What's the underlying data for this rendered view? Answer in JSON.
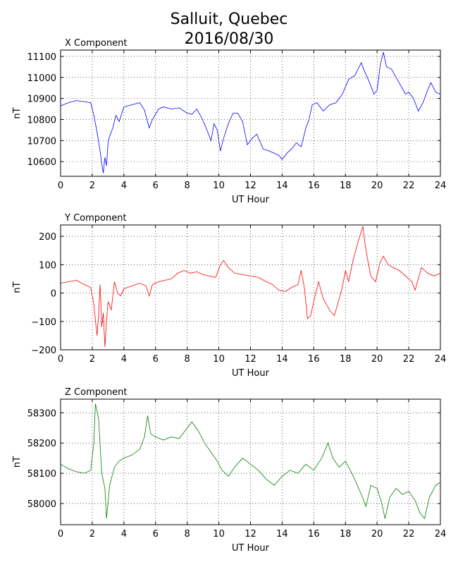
{
  "title_line1": "Salluit, Quebec",
  "title_line2": "2016/08/30",
  "chart_data": [
    {
      "type": "line",
      "panel_title": "X Component",
      "xlabel": "UT Hour",
      "ylabel": "nT",
      "xlim": [
        0,
        24
      ],
      "ylim": [
        10530,
        11130
      ],
      "xticks": [
        0,
        2,
        4,
        6,
        8,
        10,
        12,
        14,
        16,
        18,
        20,
        22,
        24
      ],
      "yticks": [
        10600,
        10700,
        10800,
        10900,
        11000,
        11100
      ],
      "grid": true,
      "color": "#0000ff",
      "points": [
        [
          0,
          10865
        ],
        [
          0.5,
          10880
        ],
        [
          1,
          10890
        ],
        [
          1.5,
          10885
        ],
        [
          1.9,
          10880
        ],
        [
          2.1,
          10820
        ],
        [
          2.3,
          10740
        ],
        [
          2.5,
          10650
        ],
        [
          2.6,
          10590
        ],
        [
          2.7,
          10545
        ],
        [
          2.8,
          10620
        ],
        [
          2.9,
          10580
        ],
        [
          3,
          10690
        ],
        [
          3.1,
          10720
        ],
        [
          3.3,
          10760
        ],
        [
          3.5,
          10820
        ],
        [
          3.7,
          10790
        ],
        [
          4,
          10860
        ],
        [
          4.5,
          10870
        ],
        [
          5,
          10880
        ],
        [
          5.3,
          10845
        ],
        [
          5.6,
          10760
        ],
        [
          5.8,
          10800
        ],
        [
          6.2,
          10850
        ],
        [
          6.5,
          10860
        ],
        [
          7,
          10850
        ],
        [
          7.5,
          10855
        ],
        [
          8,
          10830
        ],
        [
          8.3,
          10825
        ],
        [
          8.6,
          10850
        ],
        [
          8.9,
          10810
        ],
        [
          9.2,
          10760
        ],
        [
          9.5,
          10700
        ],
        [
          9.7,
          10780
        ],
        [
          9.9,
          10750
        ],
        [
          10.1,
          10650
        ],
        [
          10.3,
          10710
        ],
        [
          10.6,
          10780
        ],
        [
          10.9,
          10830
        ],
        [
          11.2,
          10830
        ],
        [
          11.5,
          10790
        ],
        [
          11.8,
          10680
        ],
        [
          12.1,
          10710
        ],
        [
          12.4,
          10730
        ],
        [
          12.8,
          10660
        ],
        [
          13.2,
          10650
        ],
        [
          13.5,
          10640
        ],
        [
          13.8,
          10630
        ],
        [
          14,
          10610
        ],
        [
          14.3,
          10640
        ],
        [
          14.6,
          10660
        ],
        [
          14.9,
          10690
        ],
        [
          15.2,
          10670
        ],
        [
          15.5,
          10760
        ],
        [
          15.7,
          10800
        ],
        [
          15.9,
          10870
        ],
        [
          16.2,
          10880
        ],
        [
          16.6,
          10840
        ],
        [
          17,
          10870
        ],
        [
          17.4,
          10880
        ],
        [
          17.8,
          10920
        ],
        [
          18.2,
          10990
        ],
        [
          18.6,
          11010
        ],
        [
          19,
          11070
        ],
        [
          19.2,
          11030
        ],
        [
          19.5,
          10980
        ],
        [
          19.8,
          10920
        ],
        [
          20,
          10940
        ],
        [
          20.2,
          11060
        ],
        [
          20.4,
          11120
        ],
        [
          20.6,
          11050
        ],
        [
          20.9,
          11040
        ],
        [
          21.2,
          11000
        ],
        [
          21.5,
          10960
        ],
        [
          21.8,
          10920
        ],
        [
          22,
          10930
        ],
        [
          22.3,
          10900
        ],
        [
          22.6,
          10840
        ],
        [
          22.9,
          10880
        ],
        [
          23.2,
          10940
        ],
        [
          23.4,
          10975
        ],
        [
          23.7,
          10930
        ],
        [
          24,
          10920
        ]
      ]
    },
    {
      "type": "line",
      "panel_title": "Y Component",
      "xlabel": "UT Hour",
      "ylabel": "nT",
      "xlim": [
        0,
        24
      ],
      "ylim": [
        -200,
        240
      ],
      "xticks": [
        0,
        2,
        4,
        6,
        8,
        10,
        12,
        14,
        16,
        18,
        20,
        22,
        24
      ],
      "yticks": [
        -200,
        -100,
        0,
        100,
        200
      ],
      "grid": true,
      "color": "#ff0000",
      "points": [
        [
          0,
          35
        ],
        [
          0.5,
          40
        ],
        [
          1,
          45
        ],
        [
          1.5,
          30
        ],
        [
          1.9,
          20
        ],
        [
          2.1,
          -40
        ],
        [
          2.3,
          -150
        ],
        [
          2.4,
          -80
        ],
        [
          2.5,
          30
        ],
        [
          2.6,
          -120
        ],
        [
          2.7,
          -70
        ],
        [
          2.8,
          -190
        ],
        [
          2.9,
          -100
        ],
        [
          3,
          -30
        ],
        [
          3.2,
          -60
        ],
        [
          3.4,
          40
        ],
        [
          3.6,
          0
        ],
        [
          3.8,
          -10
        ],
        [
          4,
          15
        ],
        [
          4.5,
          25
        ],
        [
          5,
          35
        ],
        [
          5.4,
          25
        ],
        [
          5.6,
          -10
        ],
        [
          5.8,
          30
        ],
        [
          6.2,
          40
        ],
        [
          6.6,
          45
        ],
        [
          7,
          50
        ],
        [
          7.4,
          70
        ],
        [
          7.8,
          80
        ],
        [
          8.2,
          70
        ],
        [
          8.6,
          75
        ],
        [
          9,
          65
        ],
        [
          9.4,
          60
        ],
        [
          9.8,
          55
        ],
        [
          10.1,
          100
        ],
        [
          10.3,
          115
        ],
        [
          10.6,
          90
        ],
        [
          11,
          70
        ],
        [
          11.5,
          65
        ],
        [
          12,
          60
        ],
        [
          12.5,
          55
        ],
        [
          13,
          40
        ],
        [
          13.4,
          30
        ],
        [
          13.8,
          10
        ],
        [
          14.2,
          5
        ],
        [
          14.6,
          20
        ],
        [
          15,
          30
        ],
        [
          15.2,
          80
        ],
        [
          15.4,
          20
        ],
        [
          15.6,
          -90
        ],
        [
          15.8,
          -80
        ],
        [
          16,
          -30
        ],
        [
          16.3,
          40
        ],
        [
          16.6,
          -20
        ],
        [
          17,
          -60
        ],
        [
          17.3,
          -80
        ],
        [
          17.6,
          -20
        ],
        [
          17.8,
          20
        ],
        [
          18,
          80
        ],
        [
          18.2,
          40
        ],
        [
          18.5,
          120
        ],
        [
          18.8,
          180
        ],
        [
          19.1,
          235
        ],
        [
          19.3,
          150
        ],
        [
          19.6,
          60
        ],
        [
          19.9,
          40
        ],
        [
          20.2,
          110
        ],
        [
          20.4,
          130
        ],
        [
          20.7,
          100
        ],
        [
          21,
          90
        ],
        [
          21.4,
          80
        ],
        [
          21.8,
          60
        ],
        [
          22.2,
          40
        ],
        [
          22.4,
          10
        ],
        [
          22.6,
          50
        ],
        [
          22.8,
          90
        ],
        [
          23.2,
          70
        ],
        [
          23.6,
          60
        ],
        [
          24,
          70
        ]
      ]
    },
    {
      "type": "line",
      "panel_title": "Z Component",
      "xlabel": "UT Hour",
      "ylabel": "nT",
      "xlim": [
        0,
        24
      ],
      "ylim": [
        57930,
        58345
      ],
      "xticks": [
        0,
        2,
        4,
        6,
        8,
        10,
        12,
        14,
        16,
        18,
        20,
        22,
        24
      ],
      "yticks": [
        58000,
        58100,
        58200,
        58300
      ],
      "grid": true,
      "color": "#008000",
      "points": [
        [
          0,
          58130
        ],
        [
          0.5,
          58115
        ],
        [
          1,
          58105
        ],
        [
          1.5,
          58100
        ],
        [
          1.9,
          58110
        ],
        [
          2.1,
          58200
        ],
        [
          2.2,
          58330
        ],
        [
          2.4,
          58280
        ],
        [
          2.6,
          58100
        ],
        [
          2.8,
          58050
        ],
        [
          2.9,
          57950
        ],
        [
          3.1,
          58060
        ],
        [
          3.4,
          58120
        ],
        [
          3.7,
          58140
        ],
        [
          4,
          58150
        ],
        [
          4.5,
          58160
        ],
        [
          5,
          58180
        ],
        [
          5.3,
          58220
        ],
        [
          5.5,
          58290
        ],
        [
          5.7,
          58230
        ],
        [
          6,
          58220
        ],
        [
          6.5,
          58210
        ],
        [
          7,
          58220
        ],
        [
          7.5,
          58215
        ],
        [
          8,
          58250
        ],
        [
          8.3,
          58270
        ],
        [
          8.7,
          58240
        ],
        [
          9.1,
          58200
        ],
        [
          9.5,
          58170
        ],
        [
          9.9,
          58140
        ],
        [
          10.2,
          58110
        ],
        [
          10.6,
          58090
        ],
        [
          11,
          58120
        ],
        [
          11.5,
          58150
        ],
        [
          12,
          58130
        ],
        [
          12.5,
          58110
        ],
        [
          13,
          58080
        ],
        [
          13.5,
          58060
        ],
        [
          14,
          58090
        ],
        [
          14.5,
          58110
        ],
        [
          15,
          58100
        ],
        [
          15.5,
          58130
        ],
        [
          16,
          58110
        ],
        [
          16.5,
          58150
        ],
        [
          16.9,
          58200
        ],
        [
          17.2,
          58150
        ],
        [
          17.6,
          58120
        ],
        [
          18,
          58140
        ],
        [
          18.5,
          58090
        ],
        [
          19,
          58030
        ],
        [
          19.3,
          57990
        ],
        [
          19.6,
          58060
        ],
        [
          20,
          58050
        ],
        [
          20.3,
          58000
        ],
        [
          20.5,
          57950
        ],
        [
          20.8,
          58020
        ],
        [
          21.2,
          58050
        ],
        [
          21.6,
          58030
        ],
        [
          22,
          58040
        ],
        [
          22.4,
          58010
        ],
        [
          22.7,
          57970
        ],
        [
          23,
          57950
        ],
        [
          23.3,
          58020
        ],
        [
          23.7,
          58060
        ],
        [
          24,
          58070
        ]
      ]
    }
  ]
}
